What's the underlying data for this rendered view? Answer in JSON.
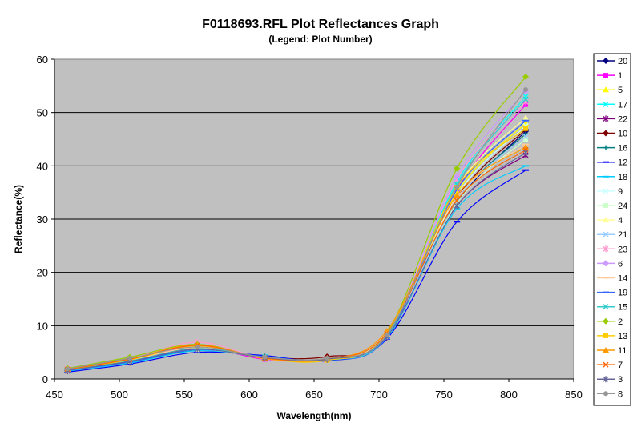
{
  "chart_data": {
    "type": "line",
    "title": "F0118693.RFL Plot Reflectances Graph",
    "subtitle": "(Legend: Plot Number)",
    "xlabel": "Wavelength(nm)",
    "ylabel": "Reflectance(%)",
    "xlim": [
      450,
      850
    ],
    "ylim": [
      0,
      60
    ],
    "xticks": [
      "450",
      "500",
      "550",
      "600",
      "650",
      "700",
      "750",
      "800",
      "850"
    ],
    "yticks": [
      "0",
      "10",
      "20",
      "30",
      "40",
      "50",
      "60"
    ],
    "grid": "horizontal",
    "background": "#c0c0c0",
    "legend": "right",
    "x": [
      460,
      508,
      560,
      612,
      660,
      706,
      760,
      813
    ],
    "series": [
      {
        "name": "20",
        "color": "#000080",
        "marker": "diamond",
        "values": [
          1.6,
          3.2,
          5.6,
          4.1,
          3.6,
          8.0,
          33.0,
          46.5
        ]
      },
      {
        "name": "1",
        "color": "#ff00ff",
        "marker": "square",
        "values": [
          1.8,
          3.5,
          6.0,
          3.7,
          3.9,
          8.2,
          35.5,
          51.5
        ]
      },
      {
        "name": "5",
        "color": "#ffff00",
        "marker": "triangle",
        "values": [
          1.7,
          3.6,
          5.8,
          4.0,
          3.7,
          8.1,
          35.0,
          48.0
        ]
      },
      {
        "name": "17",
        "color": "#00ffff",
        "marker": "cross",
        "values": [
          1.7,
          3.4,
          5.7,
          4.2,
          3.8,
          8.3,
          37.0,
          53.0
        ]
      },
      {
        "name": "22",
        "color": "#800080",
        "marker": "star",
        "values": [
          1.5,
          3.1,
          5.5,
          4.0,
          3.7,
          7.8,
          32.5,
          42.0
        ]
      },
      {
        "name": "10",
        "color": "#800000",
        "marker": "diamond",
        "values": [
          1.6,
          3.3,
          5.9,
          4.1,
          4.2,
          8.0,
          34.0,
          46.8
        ]
      },
      {
        "name": "16",
        "color": "#008080",
        "marker": "plus",
        "values": [
          1.6,
          3.2,
          5.4,
          4.3,
          3.6,
          7.9,
          33.5,
          46.0
        ]
      },
      {
        "name": "12",
        "color": "#0000ff",
        "marker": "dash",
        "values": [
          1.3,
          2.8,
          5.0,
          4.4,
          3.4,
          7.5,
          29.5,
          39.2
        ]
      },
      {
        "name": "18",
        "color": "#00ccff",
        "marker": "dash",
        "values": [
          1.5,
          3.0,
          5.3,
          4.2,
          3.5,
          7.7,
          32.0,
          40.0
        ]
      },
      {
        "name": "9",
        "color": "#ccffff",
        "marker": "cross",
        "values": [
          1.7,
          3.4,
          5.6,
          4.0,
          3.8,
          8.0,
          34.5,
          47.5
        ]
      },
      {
        "name": "24",
        "color": "#ccffcc",
        "marker": "square",
        "values": [
          1.6,
          3.3,
          5.5,
          4.1,
          3.7,
          7.9,
          33.0,
          45.0
        ]
      },
      {
        "name": "4",
        "color": "#ffff99",
        "marker": "triangle",
        "values": [
          1.8,
          3.7,
          6.1,
          4.0,
          3.9,
          8.4,
          36.0,
          49.0
        ]
      },
      {
        "name": "21",
        "color": "#99ccff",
        "marker": "cross",
        "values": [
          1.6,
          3.3,
          5.6,
          4.1,
          3.7,
          7.9,
          33.5,
          45.5
        ]
      },
      {
        "name": "23",
        "color": "#ff99cc",
        "marker": "star",
        "values": [
          1.9,
          3.8,
          6.9,
          3.9,
          3.8,
          8.2,
          37.5,
          52.0
        ]
      },
      {
        "name": "6",
        "color": "#cc99ff",
        "marker": "diamond",
        "values": [
          1.8,
          3.6,
          6.2,
          4.0,
          3.8,
          8.3,
          38.0,
          54.0
        ]
      },
      {
        "name": "14",
        "color": "#ffcc99",
        "marker": "dash",
        "values": [
          1.7,
          3.5,
          5.9,
          4.1,
          3.7,
          8.1,
          34.0,
          44.0
        ]
      },
      {
        "name": "19",
        "color": "#3366ff",
        "marker": "dash",
        "values": [
          1.6,
          3.2,
          5.5,
          4.2,
          3.6,
          7.8,
          35.5,
          48.5
        ]
      },
      {
        "name": "15",
        "color": "#33cccc",
        "marker": "cross",
        "values": [
          1.7,
          3.4,
          5.7,
          4.1,
          3.7,
          8.0,
          36.5,
          52.5
        ]
      },
      {
        "name": "2",
        "color": "#99cc00",
        "marker": "diamond",
        "values": [
          2.0,
          4.1,
          6.5,
          3.9,
          3.8,
          8.6,
          39.5,
          56.7
        ]
      },
      {
        "name": "13",
        "color": "#ffcc00",
        "marker": "square",
        "values": [
          1.8,
          3.6,
          6.2,
          3.8,
          3.5,
          8.4,
          36.0,
          47.0
        ]
      },
      {
        "name": "11",
        "color": "#ff9900",
        "marker": "triangle",
        "values": [
          1.9,
          3.8,
          6.4,
          3.9,
          3.7,
          9.0,
          34.5,
          43.5
        ]
      },
      {
        "name": "7",
        "color": "#ff6600",
        "marker": "cross",
        "values": [
          1.8,
          3.7,
          6.3,
          3.9,
          3.8,
          8.5,
          33.5,
          43.0
        ]
      },
      {
        "name": "3",
        "color": "#666699",
        "marker": "star",
        "values": [
          1.6,
          3.3,
          5.6,
          4.0,
          3.7,
          7.9,
          32.5,
          42.5
        ]
      },
      {
        "name": "8",
        "color": "#969696",
        "marker": "circle",
        "values": [
          1.9,
          3.9,
          6.0,
          4.1,
          3.9,
          8.3,
          36.0,
          54.3
        ]
      }
    ]
  }
}
